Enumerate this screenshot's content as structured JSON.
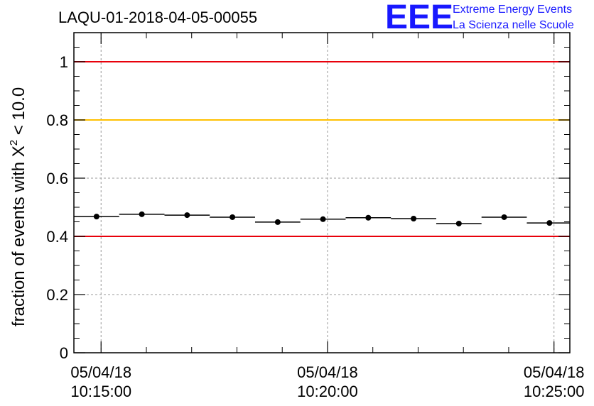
{
  "header": {
    "run_title": "LAQU-01-2018-04-05-00055",
    "logo_text": "EEE",
    "logo_line1": "Extreme Energy Events",
    "logo_line2": "La Scienza nelle Scuole"
  },
  "chart_data": {
    "type": "scatter",
    "title": "LAQU-01-2018-04-05-00055",
    "ylabel_prefix": "fraction of events with ",
    "ylabel_symbol": "X",
    "ylabel_exponent": "2",
    "ylabel_suffix": " < 10.0",
    "xlabel": "",
    "x_unit": "minutes",
    "xlim": [
      -0.6,
      10.35
    ],
    "ylim": [
      0,
      1.1
    ],
    "yticks": [
      0,
      0.2,
      0.4,
      0.6,
      0.8,
      1
    ],
    "ytick_labels": [
      "0",
      "0.2",
      "0.4",
      "0.6",
      "0.8",
      "1"
    ],
    "xticks": [
      {
        "x": 0,
        "date": "05/04/18",
        "time": "10:15:00"
      },
      {
        "x": 5,
        "date": "05/04/18",
        "time": "10:20:00"
      },
      {
        "x": 10,
        "date": "05/04/18",
        "time": "10:25:00"
      }
    ],
    "grid": true,
    "reference_lines": [
      {
        "y": 1.0,
        "color": "#e8000b"
      },
      {
        "y": 0.8,
        "color": "#ffc000"
      },
      {
        "y": 0.4,
        "color": "#e8000b"
      }
    ],
    "points": [
      {
        "x": -0.1,
        "y": 0.468,
        "xerr": 0.5
      },
      {
        "x": 0.9,
        "y": 0.476,
        "xerr": 0.5
      },
      {
        "x": 1.9,
        "y": 0.473,
        "xerr": 0.5
      },
      {
        "x": 2.9,
        "y": 0.466,
        "xerr": 0.5
      },
      {
        "x": 3.9,
        "y": 0.449,
        "xerr": 0.5
      },
      {
        "x": 4.9,
        "y": 0.459,
        "xerr": 0.5
      },
      {
        "x": 5.9,
        "y": 0.464,
        "xerr": 0.5
      },
      {
        "x": 6.9,
        "y": 0.461,
        "xerr": 0.5
      },
      {
        "x": 7.9,
        "y": 0.444,
        "xerr": 0.5
      },
      {
        "x": 8.9,
        "y": 0.466,
        "xerr": 0.5
      },
      {
        "x": 9.9,
        "y": 0.446,
        "xerr": 0.5
      }
    ],
    "point_color": "#000000"
  }
}
